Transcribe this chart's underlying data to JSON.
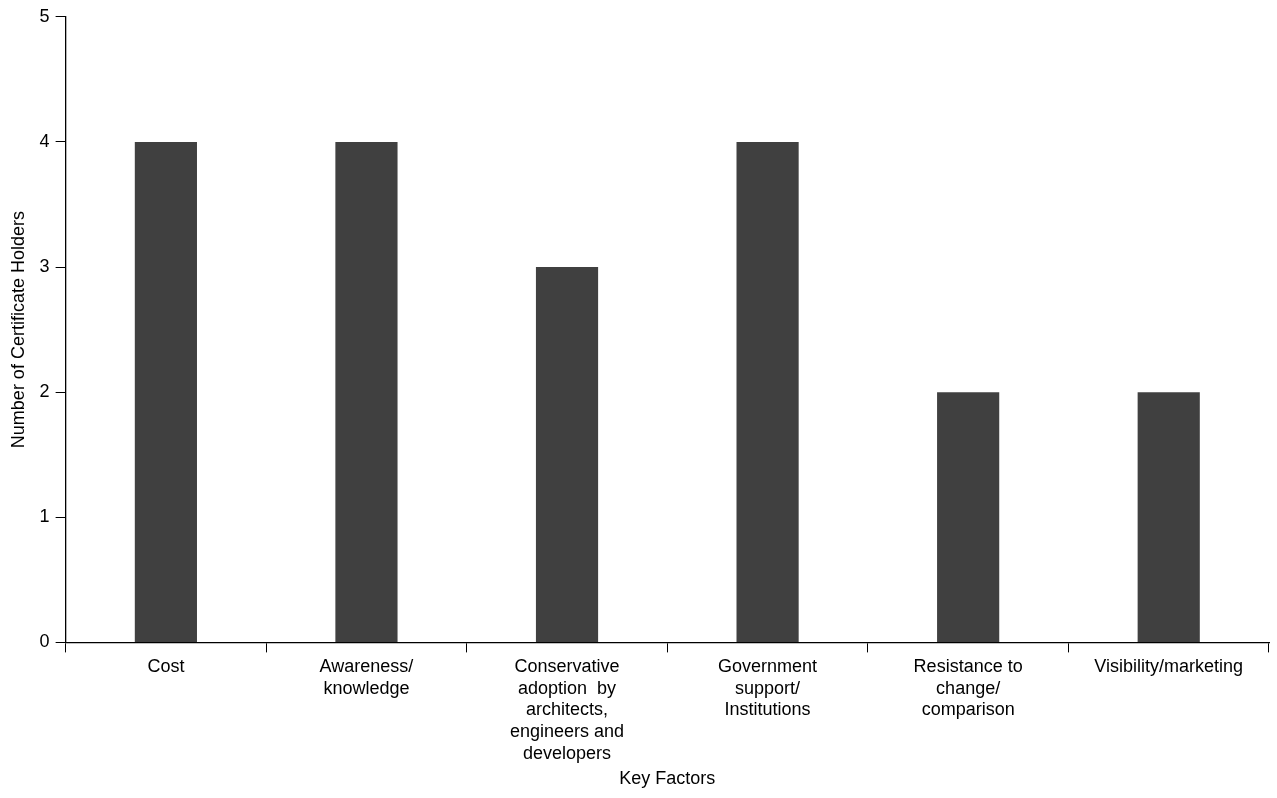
{
  "chart_data": {
    "type": "bar",
    "xlabel": "Key Factors",
    "ylabel": "Number of Certificate Holders",
    "categories": [
      "Cost",
      "Awareness/knowledge",
      "Conservative adoption  by architects, engineers and developers",
      "Government support/Institutions",
      "Resistance to change/comparison",
      "Visibility/marketing"
    ],
    "values": [
      4,
      4,
      3,
      4,
      2,
      2
    ],
    "color": "#404040",
    "ylim": [
      0,
      5
    ],
    "yticks": [
      0,
      1,
      2,
      3,
      4,
      5
    ],
    "grid": false,
    "legend": false
  }
}
